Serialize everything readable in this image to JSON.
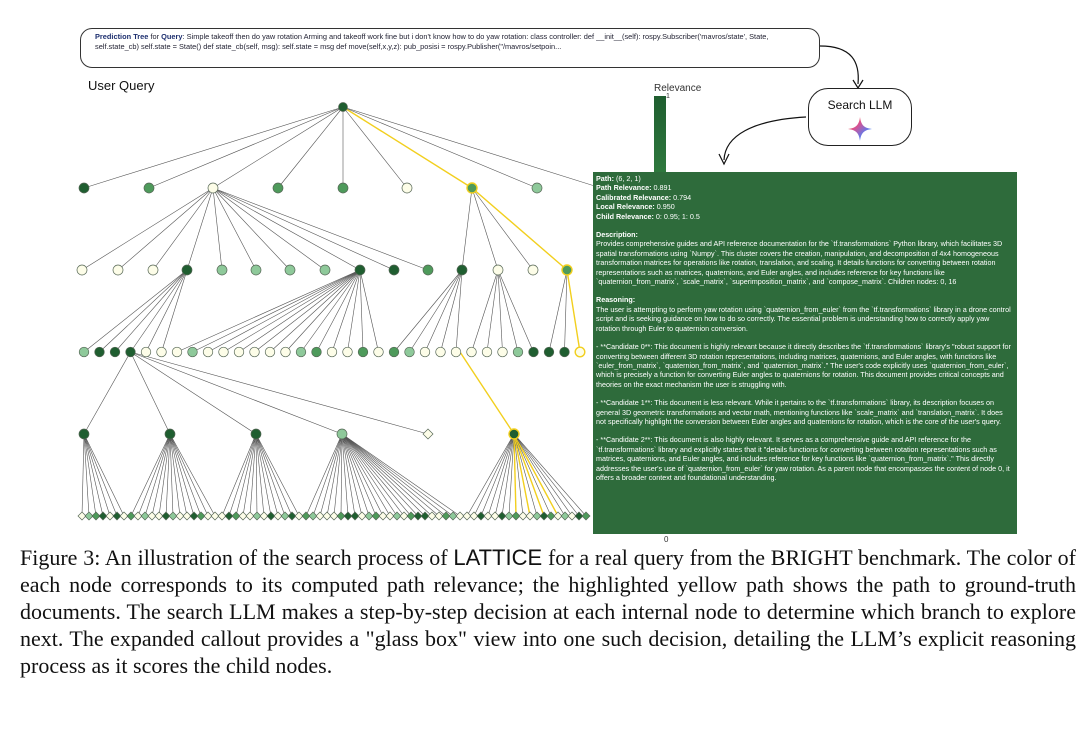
{
  "query_box": {
    "label_prefix": "Prediction Tree",
    "label_for": " for ",
    "label_query": "Query",
    "text": ": Simple takeoff then do yaw rotation   Arming and takeoff work fine but i don't know how to do yaw rotation:   class controller:     def __init__(self): rospy.Subscriber('mavros/state', State, self.state_cb)                         self.state = State()         def state_cb(self, msg):           self.state = msg         def move(self,x,y,z): pub_posisi = rospy.Publisher(\"/mavros/setpoin..."
  },
  "user_query_label": "User Query",
  "relevance": {
    "title": "Relevance",
    "max_label": "1",
    "min_label": "0"
  },
  "search_llm": {
    "label": "Search LLM",
    "icon": "sparkle-icon"
  },
  "callout": {
    "path_key": "Path:",
    "path_val": " (6, 2, 1)",
    "path_rel_key": "Path Relevance:",
    "path_rel_val": " 0.891",
    "cal_rel_key": "Calibrated Relevance:",
    "cal_rel_val": " 0.794",
    "local_rel_key": "Local Relevance:",
    "local_rel_val": " 0.950",
    "child_rel_key": "Child Relevance:",
    "child_rel_val": " 0: 0.95; 1: 0.5",
    "description_key": "Description:",
    "description": "Provides comprehensive guides and API reference documentation for the `tf.transformations` Python library, which facilitates 3D spatial transformations using `Numpy`. This cluster covers the creation, manipulation, and decomposition of 4x4 homogeneous transformation matrices for operations like rotation, translation, and scaling. It details functions for converting between rotation representations such as matrices, quaternions, and Euler angles, and includes reference for key functions like `quaternion_from_matrix`, `scale_matrix`, `superimposition_matrix`, and `compose_matrix`. Children nodes: 0, 16",
    "reasoning_key": "Reasoning:",
    "reasoning": "The user is attempting to perform yaw rotation using `quaternion_from_euler` from the `tf.transformations` library in a drone control script and is seeking guidance on how to do so correctly. The essential problem is understanding how to correctly apply yaw rotation through Euler to quaternion conversion.",
    "candidate0": "- **Candidate 0**: This document is highly relevant because it directly describes the `tf.transformations` library's \"robust support for converting between different 3D rotation representations, including matrices, quaternions, and Euler angles, with functions like `euler_from_matrix`, `quaternion_from_matrix`, and `quaternion_matrix`.\" The user's code explicitly uses `quaternion_from_euler`, which is precisely a function for converting Euler angles to quaternions for rotation. This document provides critical concepts and theories on the exact mechanism the user is struggling with.",
    "candidate1": "- **Candidate 1**: This document is less relevant. While it pertains to the `tf.transformations` library, its description focuses on general 3D geometric transformations and vector math, mentioning functions like `scale_matrix` and `translation_matrix`. It does not specifically highlight the conversion between Euler angles and quaternions for rotation, which is the core of the user's query.",
    "candidate2": "- **Candidate 2**: This document is also highly relevant. It serves as a comprehensive guide and API reference for the `tf.transformations` library and explicitly states that it \"details functions for converting between rotation representations such as matrices, quaternions, and Euler angles, and includes reference for key functions like `quaternion_from_matrix`.\" This directly addresses the user's use of `quaternion_from_euler` for yaw rotation. As a parent node that encompasses the content of node 0, it offers a broader context and foundational understanding."
  },
  "caption": {
    "lead": "Figure 3: An illustration of the search process of ",
    "system": "LATTICE",
    "rest": " for a real query from the BRIGHT benchmark. The color of each node corresponds to its computed path relevance; the highlighted yellow path shows the path to ground-truth documents. The search LLM makes a step-by-step decision at each internal node to determine which branch to explore next. The expanded callout provides a \"glass box\" view into one such decision, detailing the LLM’s explicit reasoning process as it scores the child nodes."
  },
  "colors": {
    "dark": "#1f5e30",
    "mid": "#4e9a5b",
    "light": "#8ec99a",
    "pale": "#fdfde8",
    "edge": "#555555",
    "highlight": "#f2cf1e",
    "callout": "#2e6b3b"
  }
}
